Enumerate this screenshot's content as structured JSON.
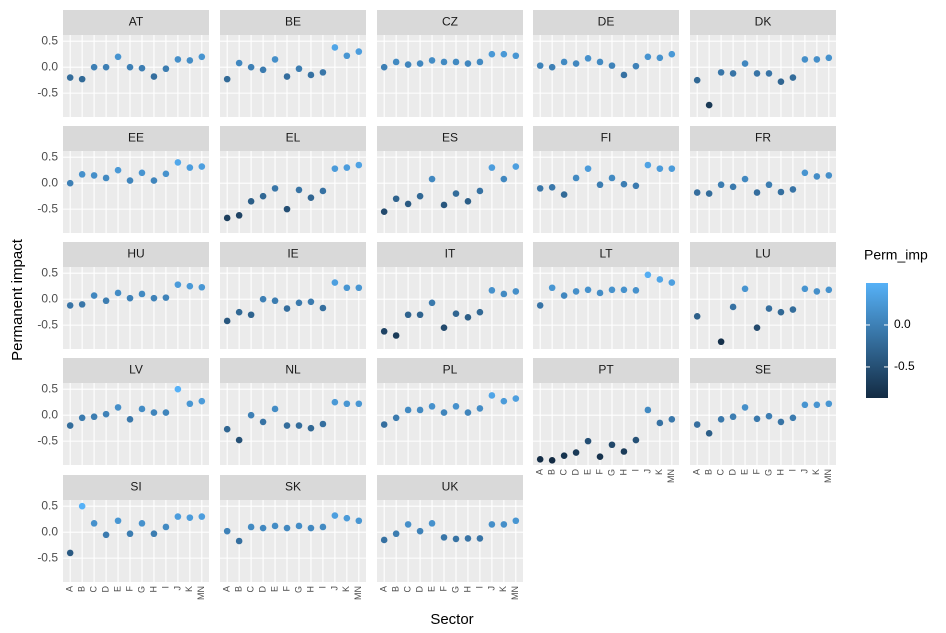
{
  "chart_data": {
    "type": "scatter",
    "x_label": "Sector",
    "y_label": "Permanent impact",
    "legend_title": "Perm_imp",
    "categories": [
      "A",
      "B",
      "C",
      "D",
      "E",
      "F",
      "G",
      "H",
      "I",
      "J",
      "K",
      "MN"
    ],
    "ylim": [
      -0.96,
      0.62
    ],
    "yticks": [
      0.5,
      {
        "value": 0,
        "label": "0.0"
      },
      -0.5
    ],
    "grid": true,
    "color_low": "#132B43",
    "color_high": "#56B1F7",
    "colorlim": [
      -0.87,
      0.5
    ],
    "colorticks": [
      {
        "value": 0,
        "label": "0.0"
      },
      -0.5
    ],
    "panels": [
      {
        "title": "AT",
        "values": [
          -0.2,
          -0.23,
          0.0,
          0.0,
          0.2,
          0.0,
          -0.02,
          -0.18,
          -0.03,
          0.15,
          0.13,
          0.2
        ]
      },
      {
        "title": "BE",
        "values": [
          -0.23,
          0.08,
          0.0,
          -0.05,
          0.15,
          -0.18,
          -0.03,
          -0.15,
          -0.1,
          0.38,
          0.22,
          0.3
        ]
      },
      {
        "title": "CZ",
        "values": [
          0.0,
          0.1,
          0.05,
          0.07,
          0.13,
          0.1,
          0.1,
          0.07,
          0.1,
          0.25,
          0.25,
          0.22
        ]
      },
      {
        "title": "DE",
        "values": [
          0.03,
          0.0,
          0.1,
          0.07,
          0.17,
          0.1,
          0.03,
          -0.15,
          0.02,
          0.2,
          0.18,
          0.25
        ]
      },
      {
        "title": "DK",
        "values": [
          -0.25,
          -0.73,
          -0.1,
          -0.12,
          0.07,
          -0.12,
          -0.12,
          -0.28,
          -0.2,
          0.15,
          0.15,
          0.18
        ]
      },
      {
        "title": "EE",
        "values": [
          0.0,
          0.17,
          0.15,
          0.1,
          0.25,
          0.05,
          0.2,
          0.05,
          0.18,
          0.4,
          0.3,
          0.32
        ]
      },
      {
        "title": "EL",
        "values": [
          -0.67,
          -0.62,
          -0.35,
          -0.25,
          -0.1,
          -0.5,
          -0.13,
          -0.28,
          -0.15,
          0.28,
          0.3,
          0.35
        ]
      },
      {
        "title": "ES",
        "values": [
          -0.55,
          -0.3,
          -0.4,
          -0.25,
          0.08,
          -0.42,
          -0.2,
          -0.35,
          -0.15,
          0.3,
          0.08,
          0.32
        ]
      },
      {
        "title": "FI",
        "values": [
          -0.1,
          -0.08,
          -0.22,
          0.1,
          0.28,
          -0.03,
          0.1,
          -0.02,
          -0.05,
          0.35,
          0.28,
          0.28
        ]
      },
      {
        "title": "FR",
        "values": [
          -0.18,
          -0.2,
          -0.03,
          -0.07,
          0.08,
          -0.18,
          -0.03,
          -0.17,
          -0.12,
          0.2,
          0.13,
          0.15
        ]
      },
      {
        "title": "HU",
        "values": [
          -0.12,
          -0.1,
          0.07,
          -0.03,
          0.12,
          0.02,
          0.1,
          0.02,
          0.03,
          0.28,
          0.25,
          0.23
        ]
      },
      {
        "title": "IE",
        "values": [
          -0.42,
          -0.25,
          -0.3,
          0.0,
          -0.03,
          -0.18,
          -0.07,
          -0.05,
          -0.17,
          0.32,
          0.22,
          0.22
        ]
      },
      {
        "title": "IT",
        "values": [
          -0.62,
          -0.7,
          -0.3,
          -0.3,
          -0.07,
          -0.55,
          -0.28,
          -0.35,
          -0.25,
          0.17,
          0.1,
          0.15
        ]
      },
      {
        "title": "LT",
        "values": [
          -0.12,
          0.22,
          0.07,
          0.15,
          0.18,
          0.12,
          0.18,
          0.18,
          0.17,
          0.47,
          0.38,
          0.32
        ]
      },
      {
        "title": "LU",
        "values": [
          -0.33,
          null,
          -0.82,
          -0.15,
          0.2,
          -0.55,
          -0.18,
          -0.25,
          -0.2,
          0.2,
          0.15,
          0.18
        ]
      },
      {
        "title": "LV",
        "values": [
          -0.2,
          -0.05,
          -0.03,
          0.02,
          0.15,
          -0.08,
          0.12,
          0.05,
          0.05,
          0.5,
          0.22,
          0.27
        ]
      },
      {
        "title": "NL",
        "values": [
          -0.27,
          -0.48,
          0.0,
          -0.13,
          0.12,
          -0.2,
          -0.2,
          -0.25,
          -0.17,
          0.25,
          0.22,
          0.22
        ]
      },
      {
        "title": "PL",
        "values": [
          -0.18,
          -0.05,
          0.1,
          0.1,
          0.17,
          0.05,
          0.17,
          0.05,
          0.13,
          0.38,
          0.27,
          0.32
        ]
      },
      {
        "title": "PT",
        "values": [
          -0.85,
          -0.87,
          -0.78,
          -0.72,
          -0.5,
          -0.8,
          -0.57,
          -0.7,
          -0.48,
          0.1,
          -0.15,
          -0.08
        ]
      },
      {
        "title": "SE",
        "values": [
          -0.18,
          -0.35,
          -0.08,
          -0.03,
          0.15,
          -0.07,
          -0.02,
          -0.13,
          -0.05,
          0.2,
          0.2,
          0.22
        ]
      },
      {
        "title": "SI",
        "values": [
          -0.4,
          0.5,
          0.17,
          -0.05,
          0.22,
          -0.03,
          0.17,
          -0.03,
          0.1,
          0.3,
          0.28,
          0.3
        ]
      },
      {
        "title": "SK",
        "values": [
          0.02,
          -0.17,
          0.1,
          0.08,
          0.12,
          0.08,
          0.12,
          0.08,
          0.1,
          0.32,
          0.27,
          0.22
        ]
      },
      {
        "title": "UK",
        "values": [
          -0.15,
          -0.03,
          0.15,
          0.02,
          0.17,
          -0.1,
          -0.13,
          -0.12,
          -0.12,
          0.15,
          0.15,
          0.22
        ]
      }
    ]
  }
}
